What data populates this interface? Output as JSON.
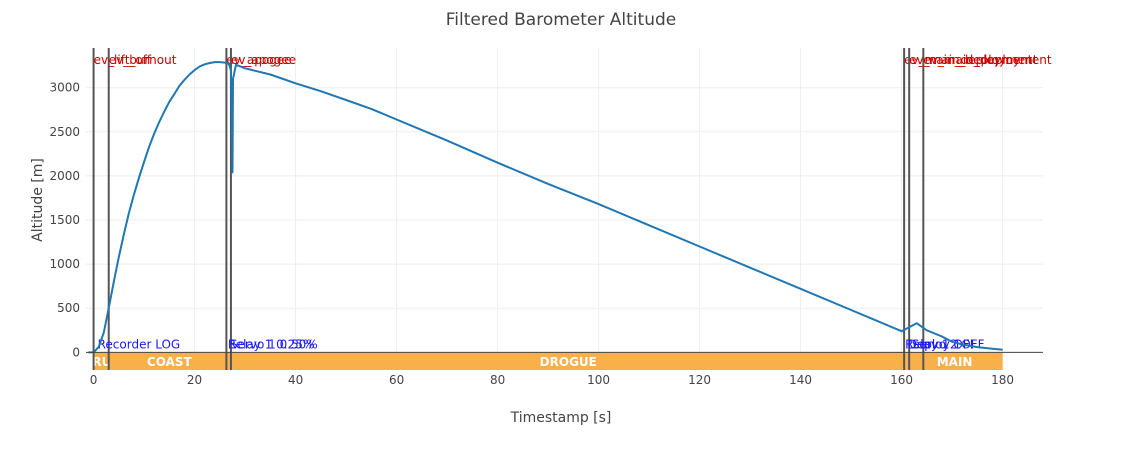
{
  "chart_data": {
    "type": "line",
    "title": "Filtered Barometer Altitude",
    "xlabel": "Timestamp [s]",
    "ylabel": "Altitude [m]",
    "xlim": [
      -1.5,
      188
    ],
    "ylim": [
      -200,
      3450
    ],
    "xticks": [
      0,
      20,
      40,
      60,
      80,
      100,
      120,
      140,
      160,
      180
    ],
    "yticks": [
      0,
      500,
      1000,
      1500,
      2000,
      2500,
      3000
    ],
    "grid": true,
    "line_color": "#1f77b4",
    "series": [
      {
        "x": [
          -1,
          0,
          1,
          2,
          3,
          4,
          5,
          6,
          7,
          8,
          9,
          10,
          11,
          12,
          13,
          14,
          15,
          16,
          17,
          18,
          19,
          20,
          21,
          22,
          23,
          24,
          25,
          26,
          26.8,
          27.2,
          27.5,
          27.6,
          28.2,
          30,
          35,
          40,
          45,
          50,
          55,
          60,
          70,
          80,
          90,
          100,
          110,
          120,
          130,
          140,
          150,
          155,
          160,
          163,
          165,
          168,
          170,
          172,
          175,
          178,
          180
        ],
        "y": [
          0,
          0,
          60,
          220,
          500,
          800,
          1080,
          1340,
          1580,
          1790,
          1980,
          2160,
          2330,
          2480,
          2610,
          2730,
          2840,
          2930,
          3020,
          3090,
          3150,
          3200,
          3240,
          3265,
          3280,
          3290,
          3290,
          3285,
          3270,
          3200,
          2040,
          3100,
          3260,
          3220,
          3150,
          3050,
          2960,
          2860,
          2760,
          2640,
          2400,
          2150,
          1910,
          1680,
          1440,
          1200,
          960,
          720,
          480,
          360,
          240,
          330,
          250,
          180,
          120,
          90,
          60,
          40,
          30
        ]
      }
    ],
    "events": [
      {
        "x": 0,
        "label": "ev_lift_off"
      },
      {
        "x": 3,
        "label": "ev_burnout"
      },
      {
        "x": 26.3,
        "label": "ev_apogee"
      },
      {
        "x": 27.2,
        "label": "ev_apogee"
      },
      {
        "x": 160.5,
        "label": "ev_main_deployment"
      },
      {
        "x": 161.5,
        "label": "ev_main_deployment"
      },
      {
        "x": 164.3,
        "label": "ev_main_deployment"
      }
    ],
    "notes": [
      {
        "x": 0.8,
        "label": "Recorder LOG"
      },
      {
        "x": 26.6,
        "label": "Relay 1 0.25%"
      },
      {
        "x": 27.0,
        "label": "Servo 1 0.50%"
      },
      {
        "x": 160.7,
        "label": "Relay 1 OFF"
      },
      {
        "x": 161.2,
        "label": "Deploy 1"
      },
      {
        "x": 162.0,
        "label": "Servo 2 OFF"
      }
    ],
    "phases": [
      {
        "label": "THRUST",
        "start": 0,
        "end": 3
      },
      {
        "label": "COAST",
        "start": 3,
        "end": 27
      },
      {
        "label": "DROGUE",
        "start": 27,
        "end": 161
      },
      {
        "label": "MAIN",
        "start": 161,
        "end": 180
      }
    ],
    "phase_color": "#f9b04b"
  }
}
